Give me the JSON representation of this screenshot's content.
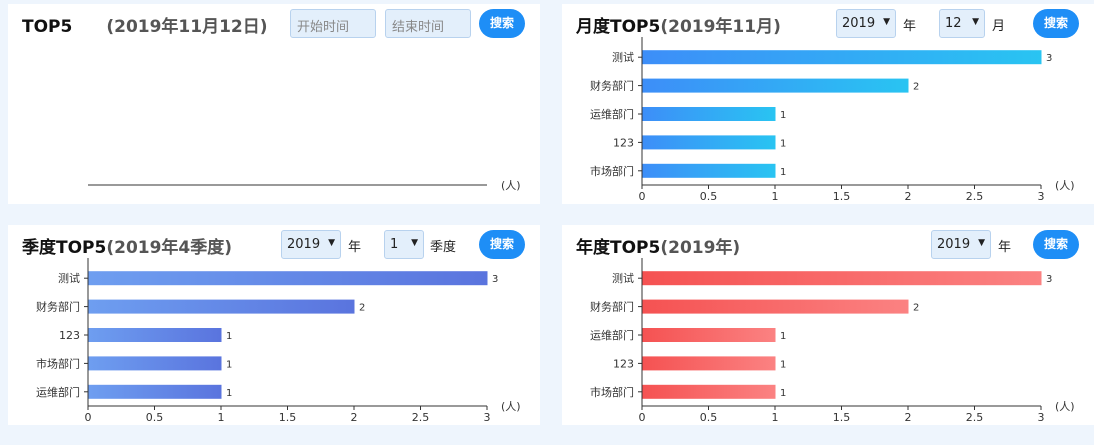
{
  "daily": {
    "title": "TOP5",
    "subtitle": "(2019年11月12日)",
    "start_placeholder": "开始时间",
    "end_placeholder": "结束时间",
    "search_label": "搜索",
    "unit_label": "(人)"
  },
  "monthly": {
    "title": "月度TOP5",
    "subtitle": "(2019年11月)",
    "year_value": "2019",
    "year_suffix": "年",
    "month_value": "12",
    "month_suffix": "月",
    "search_label": "搜索"
  },
  "quarterly": {
    "title": "季度TOP5",
    "subtitle": "(2019年4季度)",
    "year_value": "2019",
    "year_suffix": "年",
    "quarter_value": "1",
    "quarter_suffix": "季度",
    "search_label": "搜索"
  },
  "yearly": {
    "title": "年度TOP5",
    "subtitle": "(2019年)",
    "year_value": "2019",
    "year_suffix": "年",
    "search_label": "搜索"
  },
  "chart_data": [
    {
      "id": "daily",
      "type": "bar",
      "orientation": "horizontal",
      "categories": [],
      "values": [],
      "unit": "(人)",
      "xticks": []
    },
    {
      "id": "monthly",
      "type": "bar",
      "orientation": "horizontal",
      "categories": [
        "测试",
        "财务部门",
        "运维部门",
        "123",
        "市场部门"
      ],
      "values": [
        3,
        2,
        1,
        1,
        1
      ],
      "xlim": [
        0,
        3
      ],
      "xticks": [
        "0",
        "0.5",
        "1",
        "1.5",
        "2",
        "2.5",
        "3"
      ],
      "unit": "(人)",
      "colors": [
        "#3d8ef8",
        "#29c4f2"
      ]
    },
    {
      "id": "quarterly",
      "type": "bar",
      "orientation": "horizontal",
      "categories": [
        "测试",
        "财务部门",
        "123",
        "市场部门",
        "运维部门"
      ],
      "values": [
        3,
        2,
        1,
        1,
        1
      ],
      "xlim": [
        0,
        3
      ],
      "xticks": [
        "0",
        "0.5",
        "1",
        "1.5",
        "2",
        "2.5",
        "3"
      ],
      "unit": "(人)",
      "colors": [
        "#6e9ef0",
        "#5a74de"
      ]
    },
    {
      "id": "yearly",
      "type": "bar",
      "orientation": "horizontal",
      "categories": [
        "测试",
        "财务部门",
        "运维部门",
        "123",
        "市场部门"
      ],
      "values": [
        3,
        2,
        1,
        1,
        1
      ],
      "xlim": [
        0,
        3
      ],
      "xticks": [
        "0",
        "0.5",
        "1",
        "1.5",
        "2",
        "2.5",
        "3"
      ],
      "unit": "(人)",
      "colors": [
        "#f55252",
        "#fb8282"
      ]
    }
  ]
}
